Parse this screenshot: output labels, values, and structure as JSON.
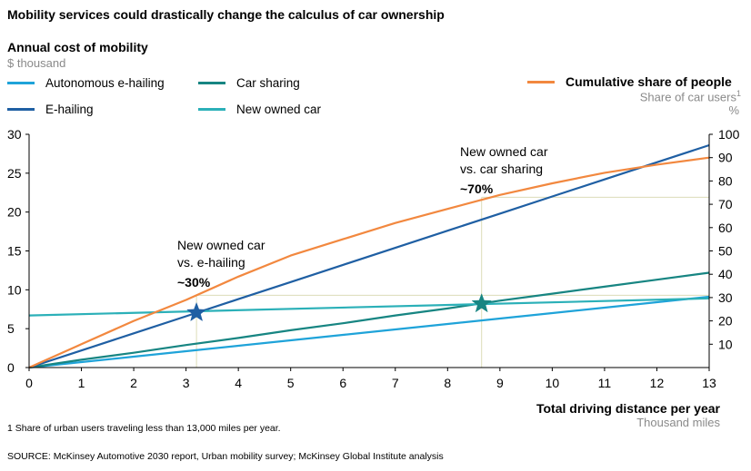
{
  "title": "Mobility services could drastically change the calculus of car ownership",
  "y_axis_title": "Annual cost of mobility",
  "y_axis_unit": "$ thousand",
  "right_axis_title": "Cumulative share of people",
  "right_axis_unit": "Share of car users",
  "right_axis_unit_sup": "1",
  "right_axis_percent": "%",
  "x_axis_title": "Total driving distance per year",
  "x_axis_unit": "Thousand miles",
  "footnote": "1  Share of urban users traveling less than 13,000 miles per year.",
  "source": "SOURCE:  McKinsey Automotive 2030 report, Urban mobility survey; McKinsey Global Institute analysis",
  "legend": [
    {
      "label": "Autonomous e-hailing",
      "color": "#1fa3d9"
    },
    {
      "label": "Car sharing",
      "color": "#178582"
    },
    {
      "label": "E-hailing",
      "color": "#1f5fa3"
    },
    {
      "label": "New owned car",
      "color": "#2bb0b8"
    },
    {
      "label": "Cumulative share of people",
      "color": "#f2883f"
    }
  ],
  "annotations": [
    {
      "line1": "New owned car",
      "line2": "vs. e-hailing",
      "value": "~30%",
      "x": 3.2,
      "y": 7.05,
      "star_color": "#1f5fa3",
      "share": 31
    },
    {
      "line1": "New owned car",
      "line2": "vs. car sharing",
      "value": "~70%",
      "x": 8.65,
      "y": 8.2,
      "star_color": "#178582",
      "share": 73
    }
  ],
  "chart_data": {
    "type": "line",
    "title": "Mobility services could drastically change the calculus of car ownership",
    "xlabel": "Total driving distance per year (Thousand miles)",
    "ylabel": "Annual cost of mobility ($ thousand)",
    "y2label": "Cumulative share of people – Share of car users (%)",
    "xlim": [
      0,
      13
    ],
    "ylim": [
      0,
      30
    ],
    "y2lim": [
      0,
      100
    ],
    "x_ticks": [
      0,
      1,
      2,
      3,
      4,
      5,
      6,
      7,
      8,
      9,
      10,
      11,
      12,
      13
    ],
    "y_ticks": [
      0,
      5,
      10,
      15,
      20,
      25,
      30
    ],
    "y2_ticks": [
      10,
      20,
      30,
      40,
      50,
      60,
      70,
      80,
      90,
      100
    ],
    "series": [
      {
        "name": "Autonomous e-hailing",
        "axis": "left",
        "color": "#1fa3d9",
        "x": [
          0,
          1,
          2,
          3,
          4,
          5,
          6,
          7,
          8,
          9,
          10,
          11,
          12,
          13
        ],
        "values": [
          0,
          0.7,
          1.4,
          2.1,
          2.8,
          3.5,
          4.2,
          4.9,
          5.6,
          6.3,
          7.0,
          7.7,
          8.4,
          9.1
        ]
      },
      {
        "name": "Car sharing",
        "axis": "left",
        "color": "#178582",
        "x": [
          0,
          1,
          2,
          3,
          4,
          5,
          6,
          7,
          8,
          9,
          10,
          11,
          12,
          13
        ],
        "values": [
          0,
          1.0,
          1.9,
          2.9,
          3.8,
          4.8,
          5.7,
          6.7,
          7.6,
          8.6,
          9.5,
          10.4,
          11.3,
          12.2
        ]
      },
      {
        "name": "E-hailing",
        "axis": "left",
        "color": "#1f5fa3",
        "x": [
          0,
          1,
          2,
          3,
          4,
          5,
          6,
          7,
          8,
          9,
          10,
          11,
          12,
          13
        ],
        "values": [
          0,
          2.2,
          4.4,
          6.6,
          8.8,
          11.0,
          13.2,
          15.4,
          17.6,
          19.8,
          22.0,
          24.2,
          26.4,
          28.6
        ]
      },
      {
        "name": "New owned car",
        "axis": "left",
        "color": "#2bb0b8",
        "x": [
          0,
          13
        ],
        "values": [
          6.7,
          8.9
        ]
      },
      {
        "name": "Cumulative share of people",
        "axis": "right",
        "color": "#f2883f",
        "x": [
          0,
          1,
          2,
          3,
          4,
          5,
          6,
          7,
          8,
          9,
          10,
          11,
          12,
          13
        ],
        "values": [
          0,
          10,
          20,
          29,
          39,
          48,
          55,
          62,
          68,
          74,
          79,
          83.5,
          87,
          90
        ]
      }
    ]
  }
}
